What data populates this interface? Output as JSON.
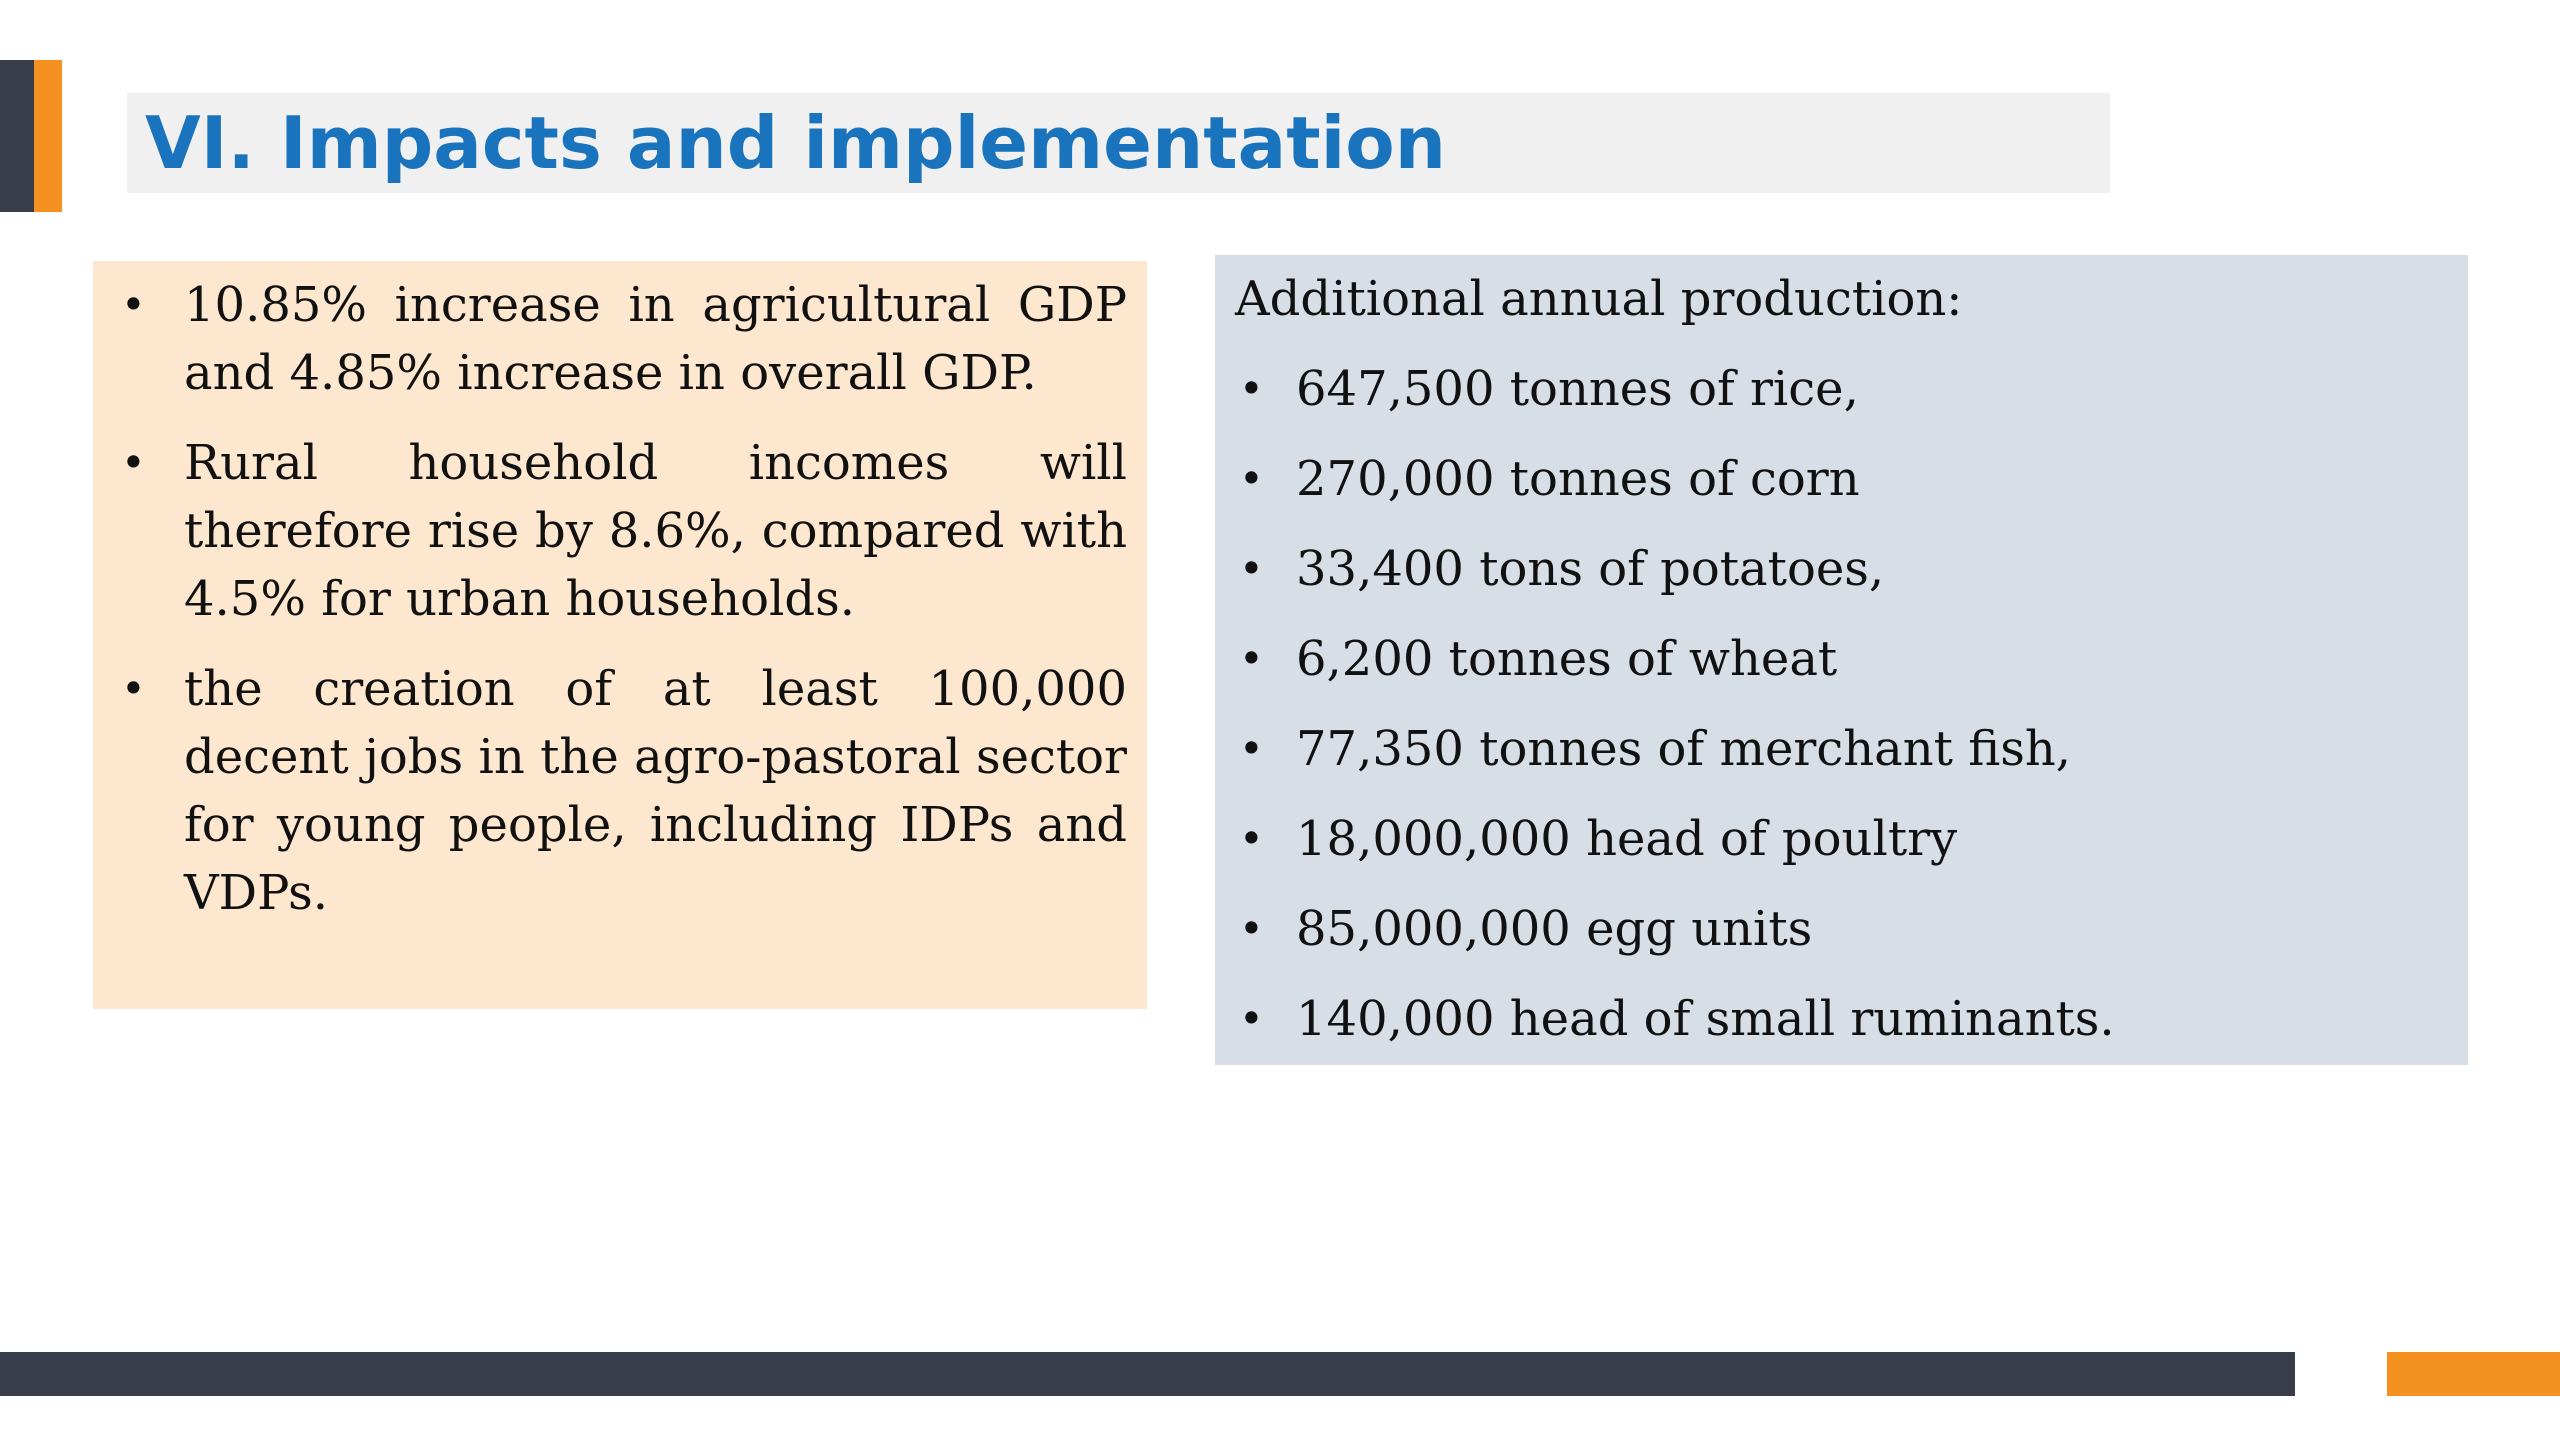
{
  "slide": {
    "title": "VI. Impacts and implementation",
    "colors": {
      "title": "#1a73bd",
      "accent_orange": "#f59120",
      "accent_dark": "#383d49",
      "title_band": "#f0f0f0",
      "left_box": "#fde7cf",
      "right_box": "#d8dee6"
    }
  },
  "left_panel": {
    "bullets": [
      "10.85% increase in agricultural GDP and 4.85% increase in overall GDP.",
      "Rural household incomes will therefore rise by 8.6%, compared with 4.5% for urban households.",
      "the creation of at least 100,000 decent jobs in the agro-pastoral sector for young people, including IDPs and VDPs."
    ]
  },
  "right_panel": {
    "heading": "Additional annual production:",
    "bullets": [
      "647,500 tonnes of rice,",
      "270,000 tonnes of corn",
      "33,400 tons of potatoes,",
      "6,200 tonnes of wheat",
      "77,350 tonnes of merchant fish,",
      "18,000,000 head of poultry",
      "85,000,000 egg units",
      "140,000 head of small ruminants."
    ]
  },
  "bullet_symbol": "•"
}
